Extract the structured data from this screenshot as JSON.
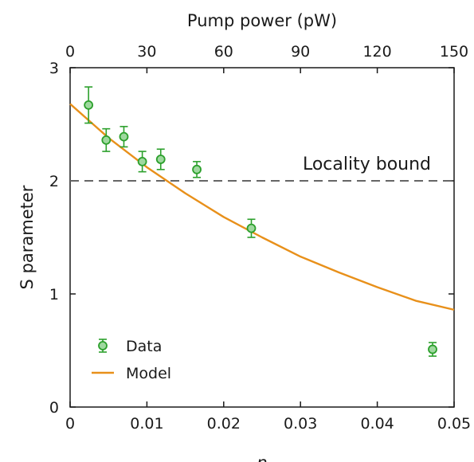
{
  "chart_data": {
    "type": "scatter",
    "xlabel": "n",
    "x2label": "Pump power (pW)",
    "ylabel": "S parameter",
    "xlim": [
      0,
      0.05
    ],
    "x2lim": [
      0,
      150
    ],
    "ylim": [
      0,
      3
    ],
    "xticks": [
      0,
      0.01,
      0.02,
      0.03,
      0.04,
      0.05
    ],
    "xtick_labels": [
      "0",
      "0.01",
      "0.02",
      "0.03",
      "0.04",
      "0.05"
    ],
    "x2ticks": [
      0,
      30,
      60,
      90,
      120,
      150
    ],
    "x2tick_labels": [
      "0",
      "30",
      "60",
      "90",
      "120",
      "150"
    ],
    "yticks": [
      0,
      1,
      2,
      3
    ],
    "ytick_labels": [
      "0",
      "1",
      "2",
      "3"
    ],
    "grid": false,
    "legend_position": "bottom-left",
    "series": [
      {
        "name": "Data",
        "kind": "scatter-errorbar",
        "color": "#2ca02c",
        "x": [
          0.0024,
          0.0047,
          0.007,
          0.0094,
          0.0118,
          0.0165,
          0.0236,
          0.0472
        ],
        "y": [
          2.67,
          2.36,
          2.39,
          2.17,
          2.19,
          2.1,
          1.58,
          0.51
        ],
        "yerr": [
          0.16,
          0.1,
          0.09,
          0.09,
          0.09,
          0.07,
          0.08,
          0.06
        ]
      },
      {
        "name": "Model",
        "kind": "line",
        "color": "#e8901a",
        "x": [
          0,
          0.005,
          0.01,
          0.015,
          0.02,
          0.025,
          0.03,
          0.035,
          0.04,
          0.045,
          0.05
        ],
        "y": [
          2.68,
          2.38,
          2.12,
          1.89,
          1.68,
          1.5,
          1.33,
          1.19,
          1.06,
          0.94,
          0.86
        ]
      }
    ],
    "hline": {
      "y": 2,
      "style": "dashed",
      "color": "#666666",
      "label": "Locality bound"
    }
  }
}
